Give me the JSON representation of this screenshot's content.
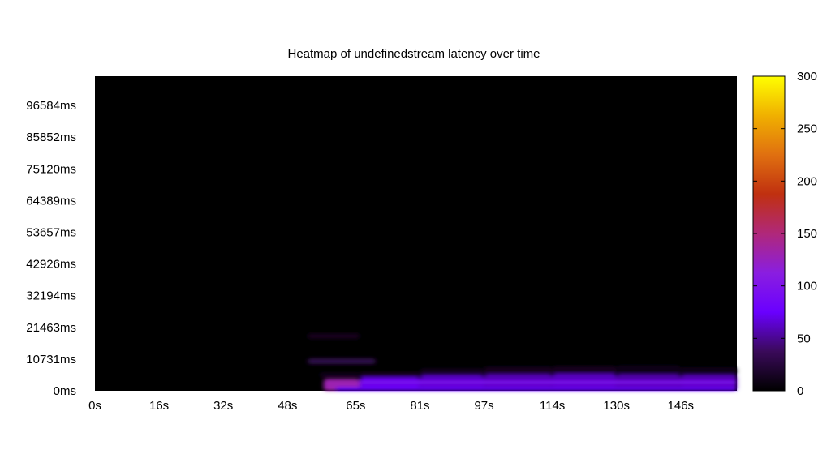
{
  "chart_data": {
    "type": "heatmap",
    "title": "Heatmap of undefinedstream latency over time",
    "xlabel": "",
    "ylabel": "",
    "x_ticks": [
      "0s",
      "16s",
      "32s",
      "48s",
      "65s",
      "81s",
      "97s",
      "114s",
      "130s",
      "146s"
    ],
    "x_tick_values": [
      0,
      16,
      32,
      48,
      65,
      81,
      97,
      114,
      130,
      146
    ],
    "xlim": [
      0,
      160
    ],
    "y_ticks": [
      "0ms",
      "10731ms",
      "21463ms",
      "32194ms",
      "42926ms",
      "53657ms",
      "64389ms",
      "75120ms",
      "85852ms",
      "96584ms"
    ],
    "y_tick_values": [
      0,
      10731,
      21463,
      32194,
      42926,
      53657,
      64389,
      75120,
      85852,
      96584
    ],
    "ylim": [
      0,
      106500
    ],
    "colorbar": {
      "ticks": [
        "0",
        "50",
        "100",
        "150",
        "200",
        "250",
        "300"
      ],
      "tick_values": [
        0,
        50,
        100,
        150,
        200,
        250,
        300
      ],
      "range": [
        0,
        300
      ],
      "colors": [
        "#000000",
        "#3a0a5a",
        "#6a00ff",
        "#8a1ee0",
        "#b0287a",
        "#c03010",
        "#e07010",
        "#f0b000",
        "#ffff00"
      ]
    },
    "cells": [
      {
        "x0": 53,
        "x1": 66,
        "y0": 17500,
        "y1": 19500,
        "v": 12
      },
      {
        "x0": 53,
        "x1": 70,
        "y0": 9000,
        "y1": 11000,
        "v": 30
      },
      {
        "x0": 56,
        "x1": 66,
        "y0": 4800,
        "y1": 6000,
        "v": 15
      },
      {
        "x0": 58,
        "x1": 63,
        "y0": 1200,
        "y1": 3200,
        "v": 220
      },
      {
        "x0": 57,
        "x1": 66,
        "y0": 0,
        "y1": 4000,
        "v": 130
      },
      {
        "x0": 66,
        "x1": 81,
        "y0": 800,
        "y1": 4600,
        "v": 70
      },
      {
        "x0": 81,
        "x1": 97,
        "y0": 500,
        "y1": 5200,
        "v": 62
      },
      {
        "x0": 97,
        "x1": 114,
        "y0": 500,
        "y1": 5600,
        "v": 58
      },
      {
        "x0": 114,
        "x1": 130,
        "y0": 500,
        "y1": 5800,
        "v": 60
      },
      {
        "x0": 130,
        "x1": 146,
        "y0": 500,
        "y1": 5600,
        "v": 55
      },
      {
        "x0": 146,
        "x1": 160,
        "y0": 300,
        "y1": 5400,
        "v": 58
      },
      {
        "x0": 66,
        "x1": 81,
        "y0": 4600,
        "y1": 6200,
        "v": 18
      },
      {
        "x0": 81,
        "x1": 97,
        "y0": 5200,
        "y1": 7400,
        "v": 14
      },
      {
        "x0": 97,
        "x1": 114,
        "y0": 5600,
        "y1": 8200,
        "v": 12
      },
      {
        "x0": 114,
        "x1": 130,
        "y0": 5800,
        "y1": 8400,
        "v": 12
      },
      {
        "x0": 130,
        "x1": 146,
        "y0": 5600,
        "y1": 8600,
        "v": 10
      },
      {
        "x0": 146,
        "x1": 160,
        "y0": 5400,
        "y1": 8000,
        "v": 10
      },
      {
        "x0": 66,
        "x1": 160,
        "y0": 2200,
        "y1": 3400,
        "v": 95
      },
      {
        "x0": 60,
        "x1": 160,
        "y0": 0,
        "y1": 1200,
        "v": 75
      }
    ]
  }
}
